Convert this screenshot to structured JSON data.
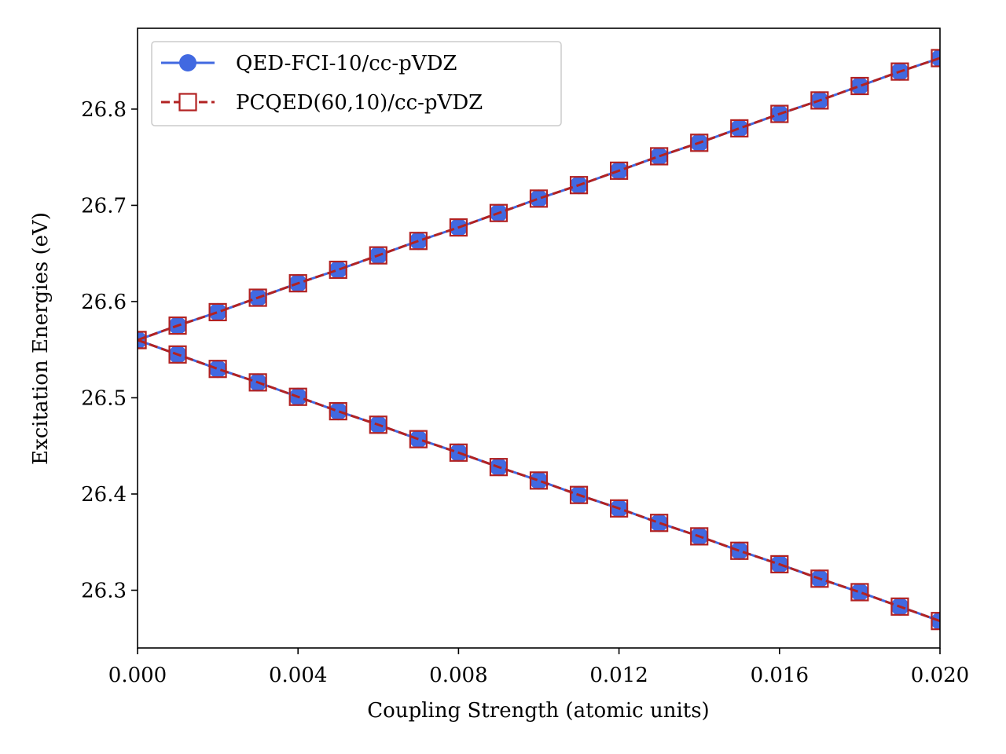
{
  "chart_data": {
    "type": "line",
    "xlabel": "Coupling Strength (atomic units)",
    "ylabel": "Excitation Energies (eV)",
    "xlim": [
      0.0,
      0.02
    ],
    "ylim": [
      26.24,
      26.884
    ],
    "xticks": [
      0.0,
      0.004,
      0.008,
      0.012,
      0.016,
      0.02
    ],
    "xtick_labels": [
      "0.000",
      "0.004",
      "0.008",
      "0.012",
      "0.016",
      "0.020"
    ],
    "yticks": [
      26.3,
      26.4,
      26.5,
      26.6,
      26.7,
      26.8
    ],
    "ytick_labels": [
      "26.3",
      "26.4",
      "26.5",
      "26.6",
      "26.7",
      "26.8"
    ],
    "grid": false,
    "legend_position": "top-left",
    "x": [
      0.0,
      0.001,
      0.002,
      0.003,
      0.004,
      0.005,
      0.006,
      0.007,
      0.008,
      0.009,
      0.01,
      0.011,
      0.012,
      0.013,
      0.014,
      0.015,
      0.016,
      0.017,
      0.018,
      0.019,
      0.02
    ],
    "series": [
      {
        "name": "QED-FCI-10/cc-pVDZ",
        "color": "#4169e1",
        "line_style": "solid",
        "marker": "filled-circle",
        "branches": [
          [
            26.56,
            26.575,
            26.589,
            26.604,
            26.619,
            26.633,
            26.648,
            26.663,
            26.677,
            26.692,
            26.707,
            26.721,
            26.736,
            26.751,
            26.765,
            26.78,
            26.795,
            26.809,
            26.824,
            26.839,
            26.853
          ],
          [
            26.56,
            26.545,
            26.53,
            26.516,
            26.501,
            26.486,
            26.472,
            26.457,
            26.443,
            26.428,
            26.414,
            26.399,
            26.385,
            26.37,
            26.356,
            26.341,
            26.327,
            26.312,
            26.298,
            26.283,
            26.268
          ]
        ]
      },
      {
        "name": "PCQED(60,10)/cc-pVDZ",
        "color": "#b22222",
        "line_style": "dashed",
        "marker": "open-square",
        "branches": [
          [
            26.56,
            26.575,
            26.589,
            26.604,
            26.619,
            26.633,
            26.648,
            26.663,
            26.677,
            26.692,
            26.707,
            26.721,
            26.736,
            26.751,
            26.765,
            26.78,
            26.795,
            26.809,
            26.824,
            26.839,
            26.853
          ],
          [
            26.56,
            26.545,
            26.53,
            26.516,
            26.501,
            26.486,
            26.472,
            26.457,
            26.443,
            26.428,
            26.414,
            26.399,
            26.385,
            26.37,
            26.356,
            26.341,
            26.327,
            26.312,
            26.298,
            26.283,
            26.268
          ]
        ]
      }
    ]
  }
}
